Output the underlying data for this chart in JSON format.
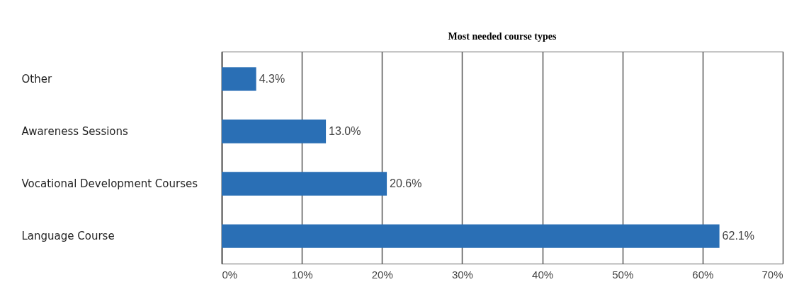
{
  "chart_data": {
    "type": "bar",
    "title": "Most needed course types",
    "orientation": "horizontal",
    "categories": [
      "Other",
      "Awareness Sessions",
      "Vocational Development Courses",
      "Language Course"
    ],
    "values": [
      4.3,
      13.0,
      20.6,
      62.1
    ],
    "value_labels": [
      "4.3%",
      "13.0%",
      "20.6%",
      "62.1%"
    ],
    "color": "#2a6fb5",
    "xlim": [
      0,
      70
    ],
    "xticks": [
      {
        "value": 0,
        "label": "0%"
      },
      {
        "value": 10,
        "label": "10%"
      },
      {
        "value": 20,
        "label": "20%"
      },
      {
        "value": 30,
        "label": "30%"
      },
      {
        "value": 40,
        "label": "40%"
      },
      {
        "value": 50,
        "label": "50%"
      },
      {
        "value": 60,
        "label": "60%"
      },
      {
        "value": 70,
        "label": "70%"
      }
    ],
    "grid": "x"
  }
}
